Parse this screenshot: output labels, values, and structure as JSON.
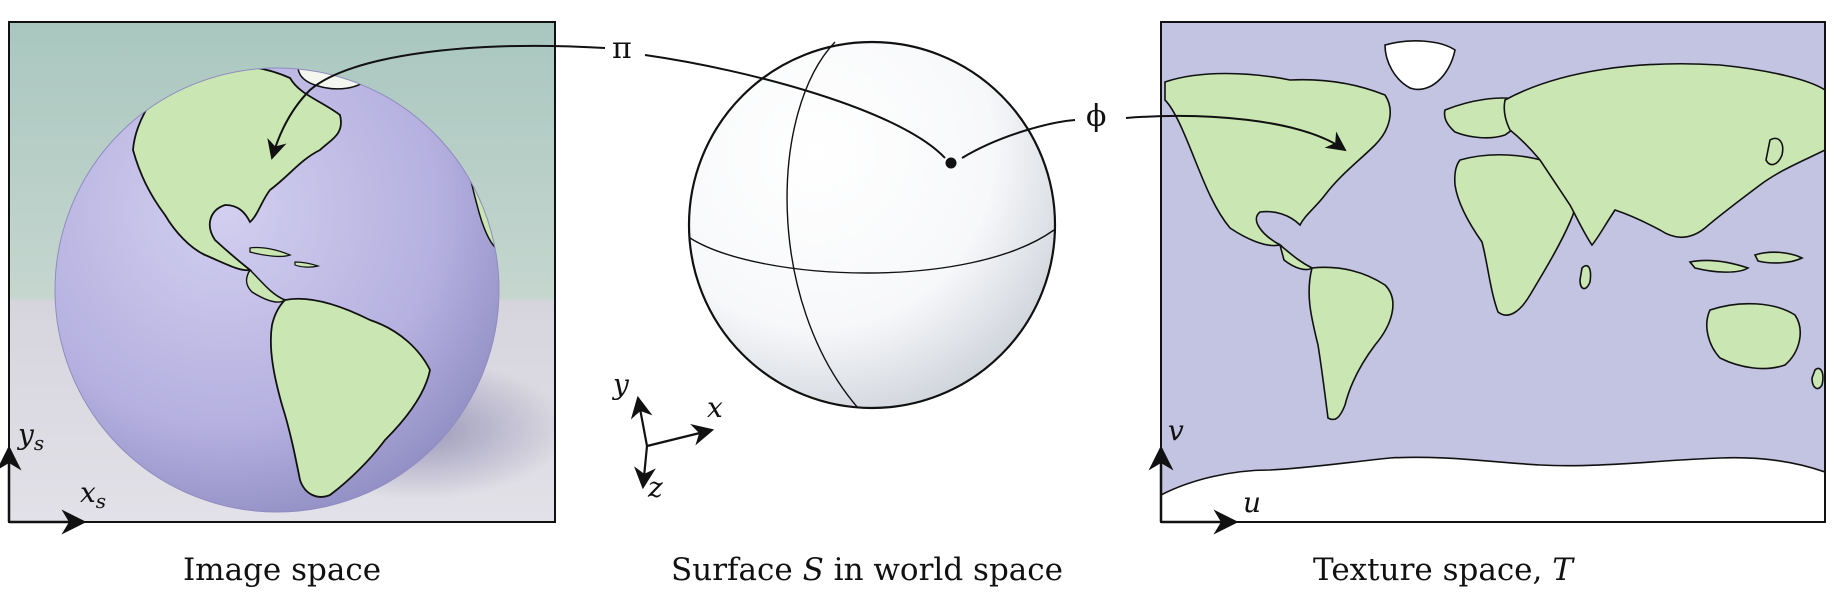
{
  "captions": {
    "image_space": "Image space",
    "surface_prefix": "Surface ",
    "surface_symbol": "S",
    "surface_suffix": " in world space",
    "texture_prefix": "Texture space, ",
    "texture_symbol": "T"
  },
  "mappings": {
    "pi": "π",
    "phi": "ϕ"
  },
  "axes": {
    "image": {
      "y": "y",
      "y_sub": "s",
      "x": "x",
      "x_sub": "s"
    },
    "world": {
      "y": "y",
      "x": "x",
      "z": "z"
    },
    "texture": {
      "v": "v",
      "u": "u"
    }
  },
  "colors": {
    "land": "#c9e6b3",
    "ocean": "#c3c3e2",
    "globe_background": "#b8cfc6",
    "frame": "#111111",
    "sphere_shade": "#d9dde2"
  }
}
